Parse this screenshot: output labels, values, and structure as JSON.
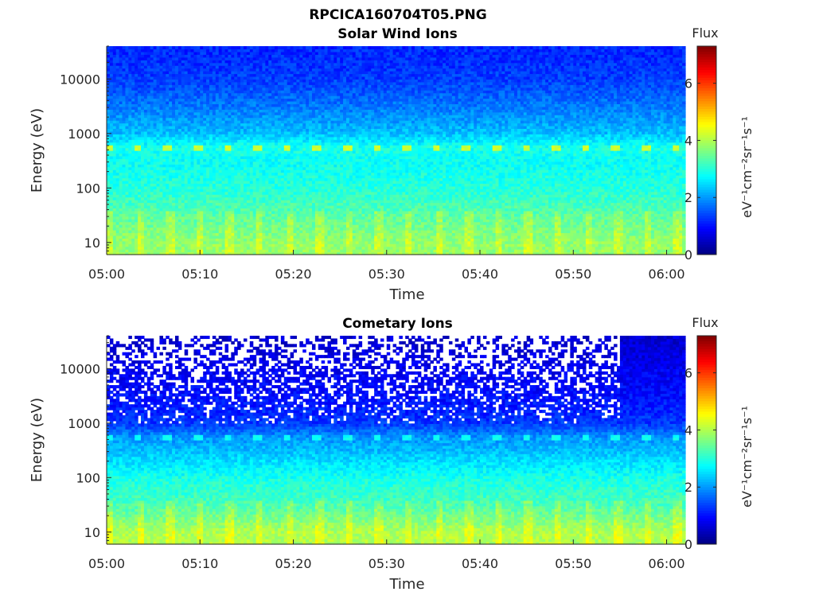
{
  "figure_title": "RPCICA160704T05.PNG",
  "chart_data": [
    {
      "type": "heatmap",
      "title": "Solar Wind Ions",
      "xlabel": "Time",
      "ylabel": "Energy (eV)",
      "xlim": [
        "05:00",
        "06:02"
      ],
      "x_ticks": [
        "05:00",
        "05:10",
        "05:20",
        "05:30",
        "05:40",
        "05:50",
        "06:00"
      ],
      "y_scale": "log",
      "ylim": [
        6,
        40000
      ],
      "y_ticks": [
        "10",
        "100",
        "1000",
        "10000"
      ],
      "colorbar": {
        "title": "Flux",
        "label": "eV⁻¹cm⁻²sr⁻¹s⁻¹",
        "range": [
          0,
          7.3
        ],
        "ticks": [
          "0",
          "2",
          "4",
          "6"
        ],
        "colormap": "jet"
      },
      "rows_by_energy_eV": [
        {
          "energy": 30000,
          "value": 1.2
        },
        {
          "energy": 10000,
          "value": 1.35
        },
        {
          "energy": 3000,
          "value": 1.8
        },
        {
          "energy": 1000,
          "value": 2.3
        },
        {
          "energy": 550,
          "value": 2.9
        },
        {
          "energy": 300,
          "value": 2.8
        },
        {
          "energy": 100,
          "value": 3.0
        },
        {
          "energy": 30,
          "value": 3.4
        },
        {
          "energy": 10,
          "value": 3.8
        }
      ],
      "periodic_feature": {
        "energy": 550,
        "value": 4.2,
        "period_minutes": 3.2
      }
    },
    {
      "type": "heatmap",
      "title": "Cometary Ions",
      "xlabel": "Time",
      "ylabel": "Energy (eV)",
      "xlim": [
        "05:00",
        "06:02"
      ],
      "x_ticks": [
        "05:00",
        "05:10",
        "05:20",
        "05:30",
        "05:40",
        "05:50",
        "06:00"
      ],
      "y_scale": "log",
      "ylim": [
        6,
        40000
      ],
      "y_ticks": [
        "10",
        "100",
        "1000",
        "10000"
      ],
      "colorbar": {
        "title": "Flux",
        "label": "eV⁻¹cm⁻²sr⁻¹s⁻¹",
        "range": [
          0,
          7.3
        ],
        "ticks": [
          "0",
          "2",
          "4",
          "6"
        ],
        "colormap": "jet"
      },
      "rows_by_energy_eV": [
        {
          "energy": 30000,
          "value": 0.6
        },
        {
          "energy": 10000,
          "value": 0.8
        },
        {
          "energy": 3000,
          "value": 1.0
        },
        {
          "energy": 1000,
          "value": 1.3
        },
        {
          "energy": 550,
          "value": 2.0
        },
        {
          "energy": 300,
          "value": 2.3
        },
        {
          "energy": 100,
          "value": 2.9
        },
        {
          "energy": 30,
          "value": 3.3
        },
        {
          "energy": 10,
          "value": 4.0
        }
      ],
      "periodic_feature": {
        "energy": 550,
        "value": 2.8,
        "period_minutes": 3.2
      },
      "missing_data_above_eV": 1000,
      "missing_data_until": "05:55"
    }
  ]
}
